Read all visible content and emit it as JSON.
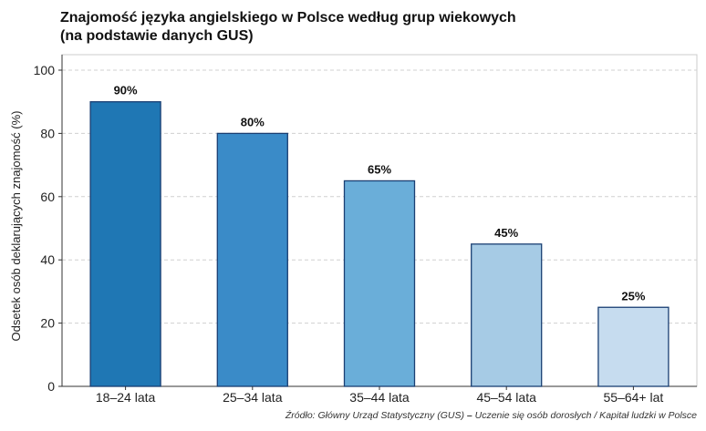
{
  "chart_data": {
    "type": "bar",
    "title_lines": [
      "Znajomość języka angielskiego w Polsce według grup wiekowych",
      "(na podstawie danych GUS)"
    ],
    "xlabel": "",
    "ylabel": "Odsetek osób deklarujących znajomość (%)",
    "categories": [
      "18–24 lata",
      "25–34 lata",
      "35–44 lata",
      "45–54 lata",
      "55–64+ lat"
    ],
    "values": [
      90,
      80,
      65,
      45,
      25
    ],
    "data_labels": [
      "90%",
      "80%",
      "65%",
      "45%",
      "25%"
    ],
    "bar_colors": [
      "#1f77b4",
      "#3a8bc8",
      "#6aaed9",
      "#a6cbe5",
      "#c6dcef"
    ],
    "bar_edge_color": "#1a3f73",
    "ylim": [
      0,
      100
    ],
    "yticks": [
      0,
      20,
      40,
      60,
      80,
      100
    ],
    "ytick_labels": [
      "0",
      "20",
      "40",
      "60",
      "80",
      "100"
    ],
    "grid": "horizontal-dashed",
    "legend": "none"
  },
  "source": {
    "prefix": "Źródło: Główny Urząd Statystyczny (GUS) ",
    "dash": "–",
    "rest": " Uczenie się osób dorosłych / Kapitał ludzki w Polsce"
  }
}
